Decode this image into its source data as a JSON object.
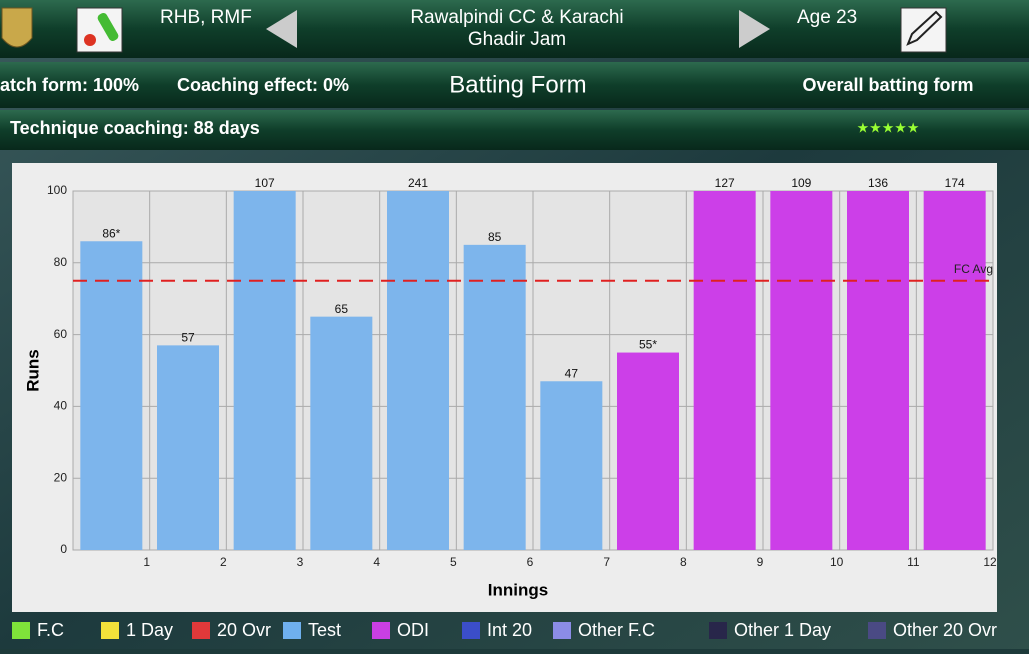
{
  "header": {
    "role": "RHB, RMF",
    "team_line1": "Rawalpindi CC & Karachi",
    "team_line2": "Ghadir Jam",
    "age": "Age 23"
  },
  "status": {
    "match_form": "atch form: 100%",
    "coaching_effect": "Coaching effect: 0%",
    "page_title": "Batting Form",
    "overall_label": "Overall batting form",
    "technique": "Technique coaching: 88 days",
    "stars": "★★★★★"
  },
  "chart_data": {
    "type": "bar",
    "xlabel": "Innings",
    "ylabel": "Runs",
    "categories": [
      1,
      2,
      3,
      4,
      5,
      6,
      7,
      8,
      9,
      10,
      11,
      12
    ],
    "values": [
      86,
      57,
      107,
      65,
      241,
      85,
      47,
      55,
      127,
      109,
      136,
      174
    ],
    "value_labels": [
      "86*",
      "57",
      "107",
      "65",
      "241",
      "85",
      "47",
      "55*",
      "127",
      "109",
      "136",
      "174"
    ],
    "colors": [
      "#7db5ec",
      "#7db5ec",
      "#7db5ec",
      "#7db5ec",
      "#7db5ec",
      "#7db5ec",
      "#7db5ec",
      "#cc3fe8",
      "#cc3fe8",
      "#cc3fe8",
      "#cc3fe8",
      "#cc3fe8"
    ],
    "ylim": [
      0,
      100
    ],
    "yticks": [
      0,
      20,
      40,
      60,
      80,
      100
    ],
    "grid": true,
    "reference_line": {
      "value": 75,
      "label": "FC Avg",
      "color": "#e02020"
    },
    "legend": [
      {
        "name": "F.C",
        "color": "#7fe33a"
      },
      {
        "name": "1 Day",
        "color": "#f3e13a"
      },
      {
        "name": "20 Ovr",
        "color": "#e0393a"
      },
      {
        "name": "Test",
        "color": "#6fb0ee"
      },
      {
        "name": "ODI",
        "color": "#c93fe3"
      },
      {
        "name": "Int 20",
        "color": "#3b4ec9"
      },
      {
        "name": "Other F.C",
        "color": "#8b8ce6"
      },
      {
        "name": "Other 1 Day",
        "color": "#28264a"
      },
      {
        "name": "Other 20 Ovr",
        "color": "#4a4a84"
      }
    ]
  }
}
